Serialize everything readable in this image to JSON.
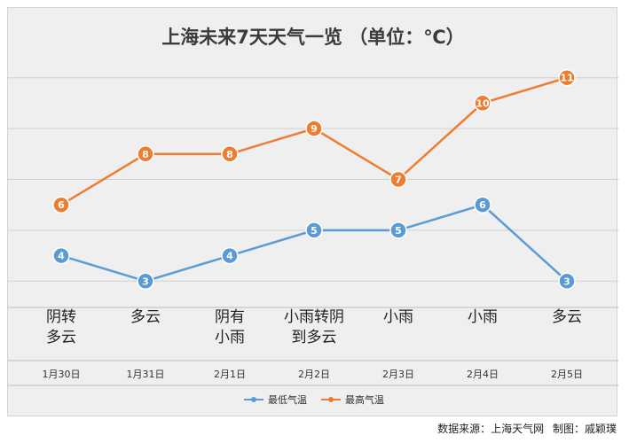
{
  "chart_data": {
    "type": "line",
    "title": "上海未来7天天气一览 （单位：℃）",
    "categories": [
      "1月30日",
      "1月31日",
      "2月1日",
      "2月2日",
      "2月3日",
      "2月4日",
      "2月5日"
    ],
    "weather": [
      [
        "阴转",
        "多云"
      ],
      [
        "多云"
      ],
      [
        "阴有",
        "小雨"
      ],
      [
        "小雨转阴",
        "到多云"
      ],
      [
        "小雨"
      ],
      [
        "小雨"
      ],
      [
        "多云"
      ]
    ],
    "series": [
      {
        "name": "最低气温",
        "values": [
          4,
          3,
          4,
          5,
          5,
          6,
          3
        ],
        "color": "#5b9bd5"
      },
      {
        "name": "最高气温",
        "values": [
          6,
          8,
          8,
          9,
          7,
          10,
          11
        ],
        "color": "#ed7d31"
      }
    ],
    "ylim": [
      2,
      12
    ],
    "grid": true,
    "legend": "bottom"
  },
  "footer": {
    "source": "数据来源：上海天气网",
    "maker": "制图：戚颖璞"
  }
}
